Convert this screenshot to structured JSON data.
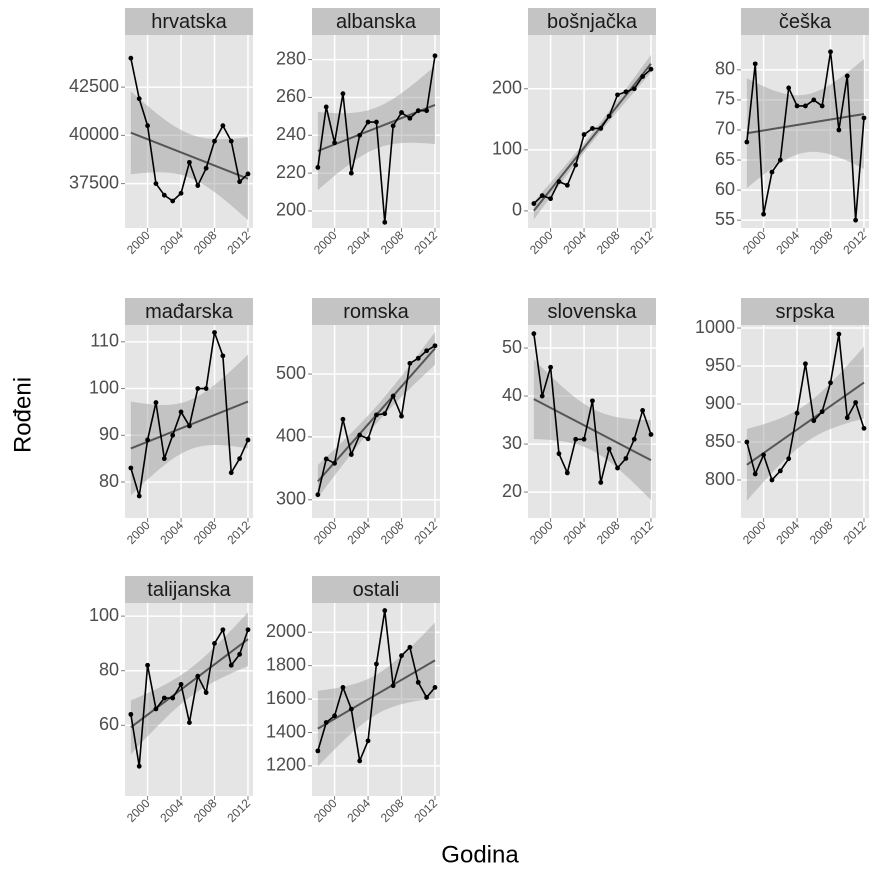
{
  "xlabel": "Godina",
  "ylabel": "Rođeni",
  "chart_data": [
    {
      "type": "line",
      "title": "hrvatska",
      "color": "#000000",
      "trend": "linear",
      "x": [
        1998,
        1999,
        2000,
        2001,
        2002,
        2003,
        2004,
        2005,
        2006,
        2007,
        2008,
        2009,
        2010,
        2011,
        2012
      ],
      "values": [
        44000,
        41900,
        40500,
        37500,
        36900,
        36600,
        37000,
        38600,
        37400,
        38300,
        39700,
        40500,
        39700,
        37600,
        38000
      ],
      "xlim": [
        1997.3,
        2012.6
      ],
      "xticks": [
        2000,
        2004,
        2008,
        2012
      ],
      "ylim": [
        35200,
        45200
      ],
      "yticks": [
        37500,
        40000,
        42500
      ]
    },
    {
      "type": "line",
      "title": "albanska",
      "color": "#000000",
      "trend": "linear",
      "x": [
        1998,
        1999,
        2000,
        2001,
        2002,
        2003,
        2004,
        2005,
        2006,
        2007,
        2008,
        2009,
        2010,
        2011,
        2012
      ],
      "values": [
        223,
        255,
        236,
        262,
        220,
        240,
        247,
        247,
        194,
        245,
        252,
        249,
        253,
        253,
        282
      ],
      "xlim": [
        1997.3,
        2012.6
      ],
      "xticks": [
        2000,
        2004,
        2008,
        2012
      ],
      "ylim": [
        191,
        293
      ],
      "yticks": [
        200,
        220,
        240,
        260,
        280
      ]
    },
    {
      "type": "line",
      "title": "bošnjačka",
      "color": "#000000",
      "trend": "linear",
      "x": [
        1998,
        1999,
        2000,
        2001,
        2002,
        2003,
        2004,
        2005,
        2006,
        2007,
        2008,
        2009,
        2010,
        2011,
        2012
      ],
      "values": [
        12,
        25,
        20,
        48,
        42,
        75,
        125,
        135,
        135,
        155,
        190,
        195,
        200,
        220,
        232
      ],
      "xlim": [
        1997.3,
        2012.6
      ],
      "xticks": [
        2000,
        2004,
        2008,
        2012
      ],
      "ylim": [
        -28,
        288
      ],
      "yticks": [
        0,
        100,
        200
      ]
    },
    {
      "type": "line",
      "title": "češka",
      "color": "#000000",
      "trend": "linear",
      "x": [
        1998,
        1999,
        2000,
        2001,
        2002,
        2003,
        2004,
        2005,
        2006,
        2007,
        2008,
        2009,
        2010,
        2011,
        2012
      ],
      "values": [
        68,
        81,
        56,
        63,
        65,
        77,
        74,
        74,
        75,
        74,
        83,
        70,
        79,
        55,
        72
      ],
      "xlim": [
        1997.3,
        2012.6
      ],
      "xticks": [
        2000,
        2004,
        2008,
        2012
      ],
      "ylim": [
        53.7,
        85.8
      ],
      "yticks": [
        55,
        60,
        65,
        70,
        75,
        80
      ]
    },
    {
      "type": "line",
      "title": "mađarska",
      "color": "#000000",
      "trend": "linear",
      "x": [
        1998,
        1999,
        2000,
        2001,
        2002,
        2003,
        2004,
        2005,
        2006,
        2007,
        2008,
        2009,
        2010,
        2011,
        2012
      ],
      "values": [
        83,
        77,
        89,
        97,
        85,
        90,
        95,
        92,
        100,
        100,
        112,
        107,
        82,
        85,
        89
      ],
      "xlim": [
        1997.3,
        2012.6
      ],
      "xticks": [
        2000,
        2004,
        2008,
        2012
      ],
      "ylim": [
        72.3,
        113.6
      ],
      "yticks": [
        80,
        90,
        100,
        110
      ]
    },
    {
      "type": "line",
      "title": "romska",
      "color": "#000000",
      "trend": "linear",
      "x": [
        1998,
        1999,
        2000,
        2001,
        2002,
        2003,
        2004,
        2005,
        2006,
        2007,
        2008,
        2009,
        2010,
        2011,
        2012
      ],
      "values": [
        308,
        365,
        358,
        428,
        372,
        403,
        397,
        435,
        437,
        465,
        433,
        517,
        525,
        537,
        545
      ],
      "xlim": [
        1997.3,
        2012.6
      ],
      "xticks": [
        2000,
        2004,
        2008,
        2012
      ],
      "ylim": [
        271,
        578
      ],
      "yticks": [
        300,
        400,
        500
      ]
    },
    {
      "type": "line",
      "title": "slovenska",
      "color": "#000000",
      "trend": "linear",
      "x": [
        1998,
        1999,
        2000,
        2001,
        2002,
        2003,
        2004,
        2005,
        2006,
        2007,
        2008,
        2009,
        2010,
        2011,
        2012
      ],
      "values": [
        53,
        40,
        46,
        28,
        24,
        31,
        31,
        39,
        22,
        29,
        25,
        27,
        31,
        37,
        32
      ],
      "xlim": [
        1997.3,
        2012.6
      ],
      "xticks": [
        2000,
        2004,
        2008,
        2012
      ],
      "ylim": [
        14.6,
        54.8
      ],
      "yticks": [
        20,
        30,
        40,
        50
      ]
    },
    {
      "type": "line",
      "title": "srpska",
      "color": "#000000",
      "trend": "linear",
      "x": [
        1998,
        1999,
        2000,
        2001,
        2002,
        2003,
        2004,
        2005,
        2006,
        2007,
        2008,
        2009,
        2010,
        2011,
        2012
      ],
      "values": [
        850,
        808,
        833,
        800,
        812,
        828,
        888,
        953,
        878,
        890,
        928,
        992,
        882,
        902,
        868
      ],
      "xlim": [
        1997.3,
        2012.6
      ],
      "xticks": [
        2000,
        2004,
        2008,
        2012
      ],
      "ylim": [
        750,
        1004
      ],
      "yticks": [
        800,
        850,
        900,
        950,
        1000
      ]
    },
    {
      "type": "line",
      "title": "talijanska",
      "color": "#000000",
      "trend": "linear",
      "x": [
        1998,
        1999,
        2000,
        2001,
        2002,
        2003,
        2004,
        2005,
        2006,
        2007,
        2008,
        2009,
        2010,
        2011,
        2012
      ],
      "values": [
        64,
        45,
        82,
        66,
        70,
        70,
        75,
        61,
        78,
        72,
        90,
        95,
        82,
        86,
        95
      ],
      "xlim": [
        1997.3,
        2012.6
      ],
      "xticks": [
        2000,
        2004,
        2008,
        2012
      ],
      "ylim": [
        34.1,
        104.8
      ],
      "yticks": [
        60,
        80,
        100
      ]
    },
    {
      "type": "line",
      "title": "ostali",
      "color": "#000000",
      "trend": "linear",
      "x": [
        1998,
        1999,
        2000,
        2001,
        2002,
        2003,
        2004,
        2005,
        2006,
        2007,
        2008,
        2009,
        2010,
        2011,
        2012
      ],
      "values": [
        1290,
        1460,
        1500,
        1670,
        1540,
        1230,
        1350,
        1810,
        2130,
        1680,
        1860,
        1910,
        1700,
        1610,
        1670
      ],
      "xlim": [
        1997.3,
        2012.6
      ],
      "xticks": [
        2000,
        2004,
        2008,
        2012
      ],
      "ylim": [
        1020,
        2175
      ],
      "yticks": [
        1200,
        1400,
        1600,
        1800,
        2000
      ]
    }
  ]
}
